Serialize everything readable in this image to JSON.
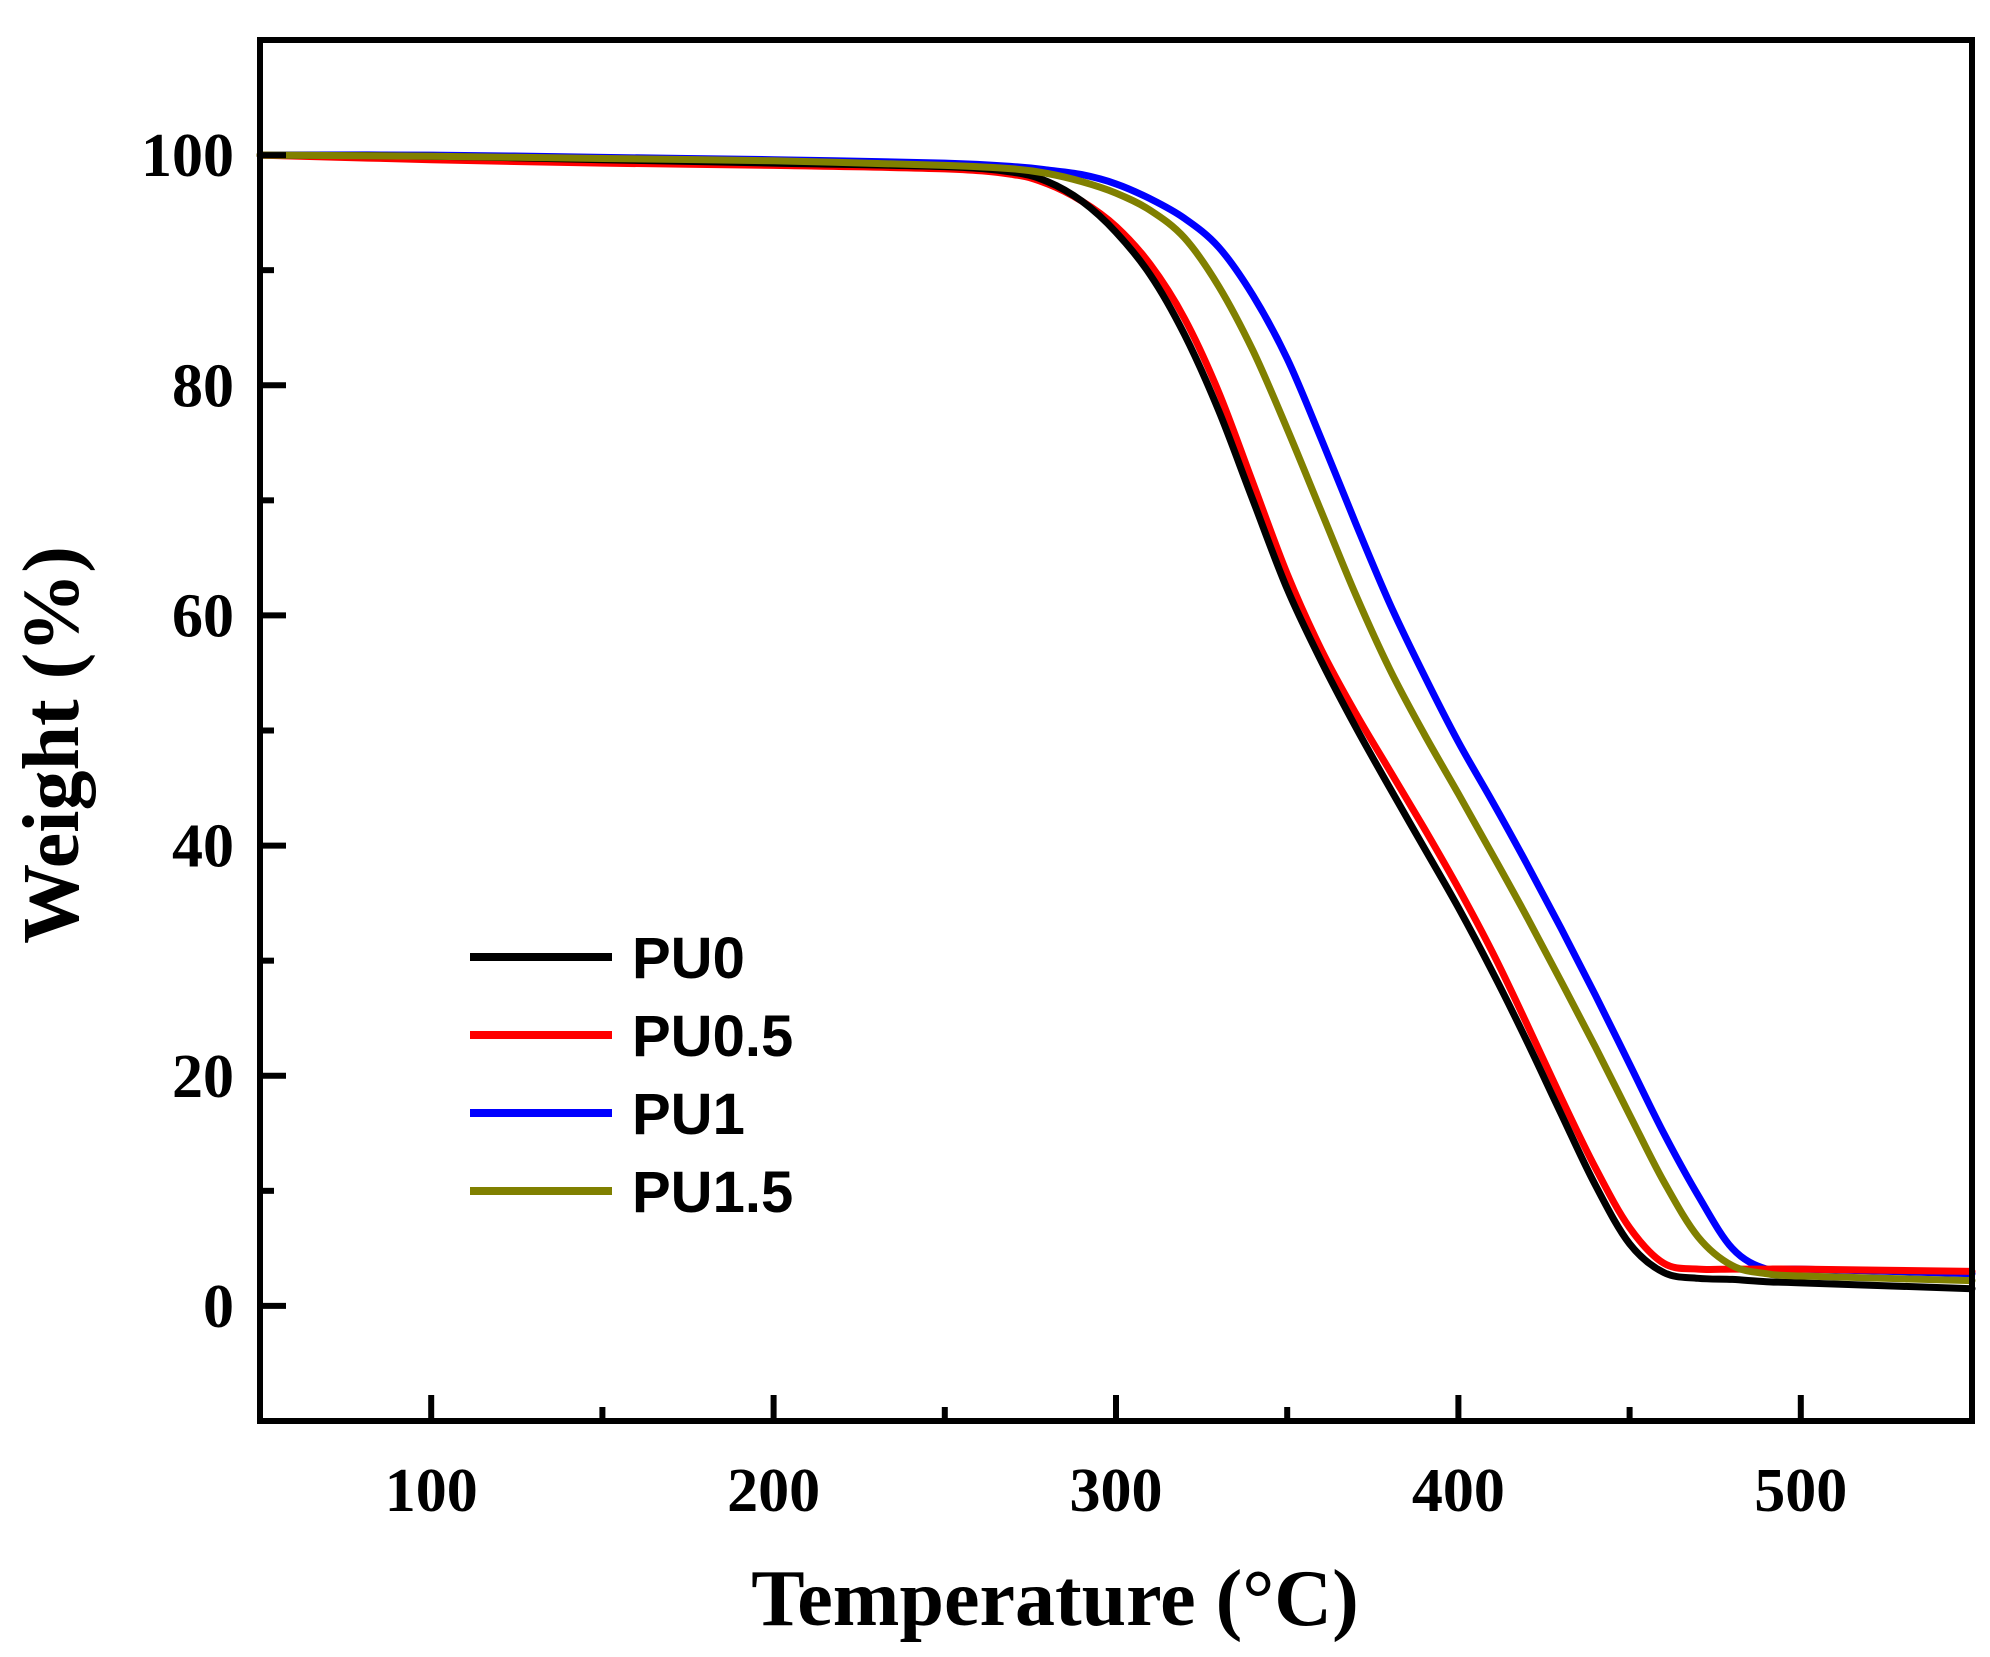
{
  "chart_data": {
    "type": "line",
    "title": "",
    "xlabel": "Temperature (°C)",
    "xlabel_main": "Temperature (",
    "xlabel_unit": "°C",
    "xlabel_close": ")",
    "ylabel": "Weight (%)",
    "xlim": [
      50,
      550
    ],
    "ylim": [
      -10,
      110
    ],
    "x_ticks": [
      100,
      200,
      300,
      400,
      500
    ],
    "x_minor_ticks": [
      150,
      250,
      350,
      450
    ],
    "y_ticks": [
      0,
      20,
      40,
      60,
      80,
      100
    ],
    "y_minor_ticks": [
      10,
      30,
      50,
      70,
      90
    ],
    "legend_position": "lower-left",
    "series": [
      {
        "name": "PU0",
        "color": "#000000",
        "x": [
          50,
          100,
          150,
          200,
          250,
          270,
          280,
          290,
          300,
          310,
          320,
          330,
          340,
          350,
          360,
          370,
          380,
          390,
          400,
          410,
          420,
          430,
          440,
          450,
          460,
          470,
          480,
          490,
          500,
          550
        ],
        "y": [
          100,
          99.9,
          99.6,
          99.3,
          99,
          98.5,
          97.7,
          96,
          93.3,
          89.6,
          84.4,
          77.8,
          70,
          62.3,
          56,
          50.3,
          45,
          39.8,
          34.6,
          29,
          23,
          16.7,
          10.5,
          5.4,
          2.9,
          2.4,
          2.3,
          2.1,
          2,
          1.5
        ]
      },
      {
        "name": "PU0.5",
        "color": "#ff0000",
        "x": [
          50,
          100,
          150,
          200,
          250,
          270,
          280,
          290,
          300,
          310,
          320,
          330,
          340,
          350,
          360,
          370,
          380,
          390,
          400,
          410,
          420,
          430,
          440,
          450,
          460,
          470,
          480,
          490,
          500,
          550
        ],
        "y": [
          100,
          99.6,
          99.3,
          99.1,
          98.8,
          98.3,
          97.5,
          96,
          93.8,
          90.5,
          85.8,
          79.4,
          71.5,
          63.6,
          57,
          51.5,
          46.5,
          41.5,
          36.3,
          30.7,
          24.5,
          18.1,
          12,
          6.8,
          3.7,
          3.2,
          3.2,
          3.2,
          3.2,
          3
        ]
      },
      {
        "name": "PU1",
        "color": "#0000ff",
        "x": [
          50,
          100,
          150,
          200,
          250,
          270,
          280,
          290,
          300,
          310,
          320,
          330,
          340,
          350,
          360,
          370,
          380,
          390,
          400,
          410,
          420,
          430,
          440,
          450,
          460,
          470,
          480,
          490,
          500,
          550
        ],
        "y": [
          100,
          100,
          99.8,
          99.6,
          99.3,
          99,
          98.7,
          98.3,
          97.5,
          96.2,
          94.5,
          92,
          87.8,
          82.3,
          75.3,
          68,
          61,
          54.8,
          49,
          43.8,
          38.4,
          32.8,
          27,
          21,
          15,
          9.6,
          5,
          3.2,
          3.2,
          2.8
        ]
      },
      {
        "name": "PU1.5",
        "color": "#808000",
        "x": [
          50,
          100,
          150,
          200,
          250,
          270,
          280,
          290,
          300,
          310,
          320,
          330,
          340,
          350,
          360,
          370,
          380,
          390,
          400,
          410,
          420,
          430,
          440,
          450,
          460,
          470,
          480,
          490,
          500,
          550
        ],
        "y": [
          100,
          99.9,
          99.7,
          99.5,
          99.1,
          98.8,
          98.4,
          97.7,
          96.7,
          95.2,
          92.8,
          88.6,
          83,
          76.2,
          69,
          61.8,
          55.3,
          49.7,
          44.5,
          39.2,
          33.8,
          28.2,
          22.5,
          16.6,
          10.8,
          6,
          3.5,
          2.8,
          2.6,
          2.2
        ]
      }
    ]
  }
}
